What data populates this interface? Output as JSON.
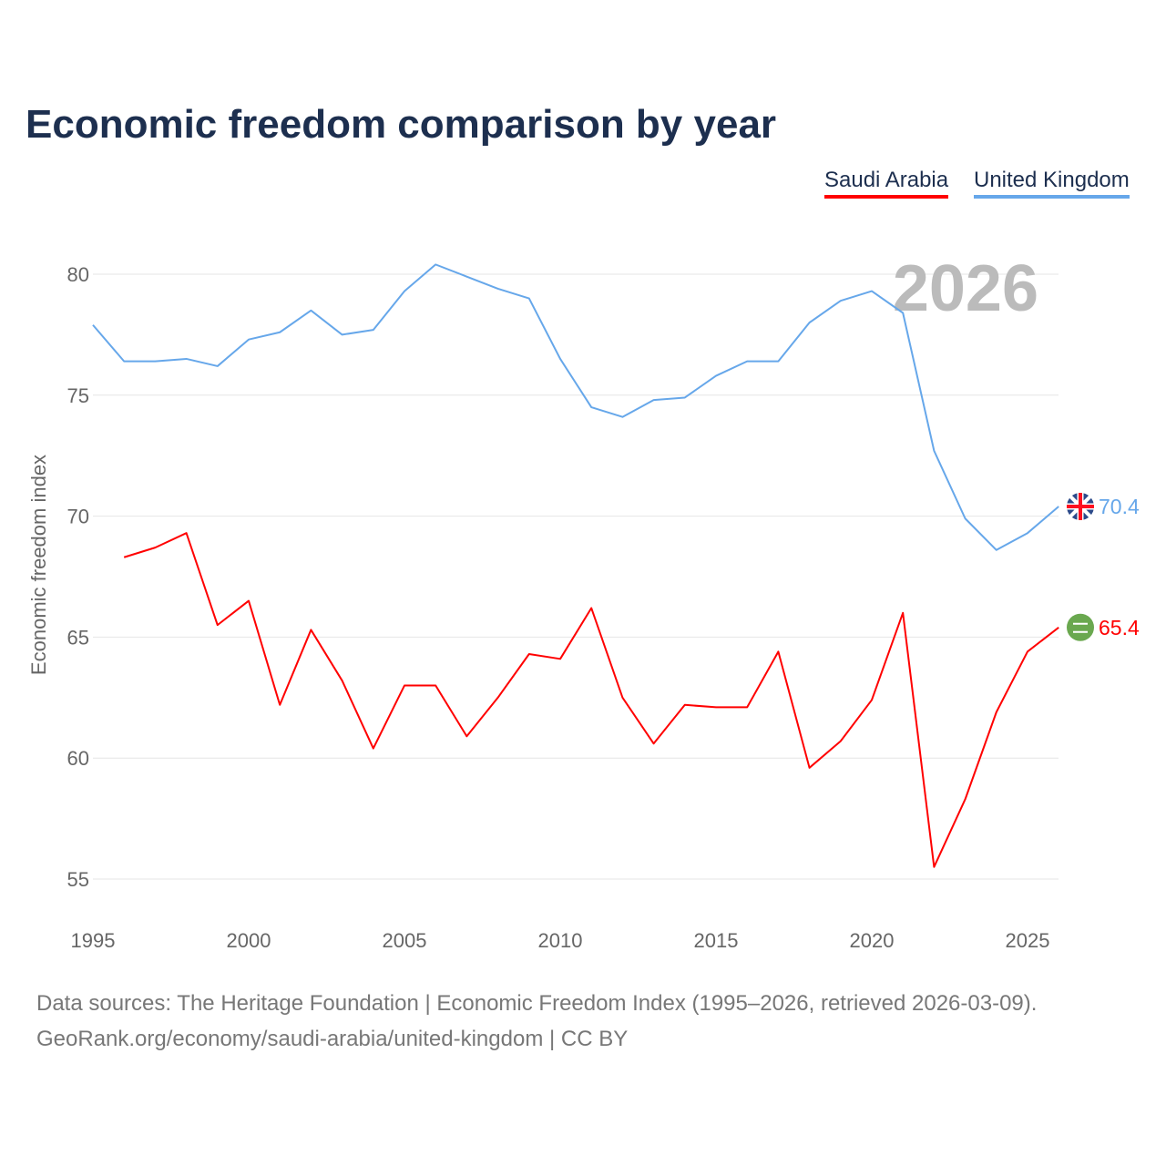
{
  "chart_data": {
    "type": "line",
    "title": "Economic freedom comparison by year",
    "ylabel": "Economic freedom index",
    "xlabel": "",
    "watermark_year": "2026",
    "ylim": [
      53,
      82
    ],
    "xlim": [
      1995,
      2026
    ],
    "yticks": [
      55,
      60,
      65,
      70,
      75,
      80
    ],
    "xticks": [
      1995,
      2000,
      2005,
      2010,
      2015,
      2020,
      2025
    ],
    "grid": true,
    "legend_position": "top-right",
    "series": [
      {
        "name": "Saudi Arabia",
        "color": "#ff0000",
        "end_label": "65.4",
        "flag_icon": "saudi-arabia-flag-icon",
        "x": [
          1996,
          1997,
          1998,
          1999,
          2000,
          2001,
          2002,
          2003,
          2004,
          2005,
          2006,
          2007,
          2008,
          2009,
          2010,
          2011,
          2012,
          2013,
          2014,
          2015,
          2016,
          2017,
          2018,
          2019,
          2020,
          2021,
          2022,
          2023,
          2024,
          2025,
          2026
        ],
        "values": [
          68.3,
          68.7,
          69.3,
          65.5,
          66.5,
          62.2,
          65.3,
          63.2,
          60.4,
          63.0,
          63.0,
          60.9,
          62.5,
          64.3,
          64.1,
          66.2,
          62.5,
          60.6,
          62.2,
          62.1,
          62.1,
          64.4,
          59.6,
          60.7,
          62.4,
          66.0,
          55.5,
          58.3,
          61.9,
          64.4,
          65.4
        ]
      },
      {
        "name": "United Kingdom",
        "color": "#66a7ea",
        "end_label": "70.4",
        "flag_icon": "uk-flag-icon",
        "x": [
          1995,
          1996,
          1997,
          1998,
          1999,
          2000,
          2001,
          2002,
          2003,
          2004,
          2005,
          2006,
          2007,
          2008,
          2009,
          2010,
          2011,
          2012,
          2013,
          2014,
          2015,
          2016,
          2017,
          2018,
          2019,
          2020,
          2021,
          2022,
          2023,
          2024,
          2025,
          2026
        ],
        "values": [
          77.9,
          76.4,
          76.4,
          76.5,
          76.2,
          77.3,
          77.6,
          78.5,
          77.5,
          77.7,
          79.3,
          80.4,
          79.9,
          79.4,
          79.0,
          76.5,
          74.5,
          74.1,
          74.8,
          74.9,
          75.8,
          76.4,
          76.4,
          78.0,
          78.9,
          79.3,
          78.4,
          72.7,
          69.9,
          68.6,
          69.3,
          70.4
        ]
      }
    ]
  },
  "footer": {
    "line1": "Data sources: The Heritage Foundation | Economic Freedom Index (1995–2026, retrieved 2026-03-09).",
    "line2": "GeoRank.org/economy/saudi-arabia/united-kingdom | CC BY"
  }
}
